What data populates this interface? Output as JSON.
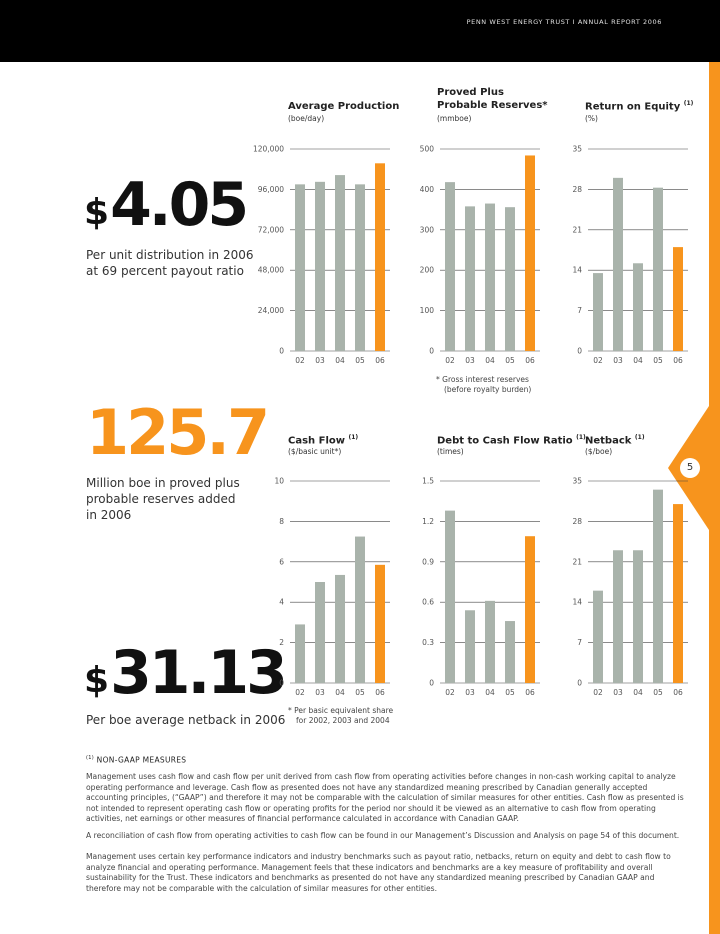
{
  "header": {
    "running_title": "PENN WEST ENERGY TRUST I ANNUAL REPORT 2006",
    "page_number": "5"
  },
  "highlights": [
    {
      "dollar": "$",
      "value": "4.05",
      "caption": [
        "Per unit distribution in 2006",
        "at 69 percent payout ratio"
      ]
    },
    {
      "dollar": "",
      "value": "125.7",
      "caption": [
        "Million boe in proved plus",
        "probable reserves added",
        "in 2006"
      ]
    },
    {
      "dollar": "$",
      "value": "31.13",
      "caption": [
        "Per boe average netback in 2006"
      ]
    }
  ],
  "colors": {
    "bar": "#a9b3ab",
    "highlight": "#f7941d",
    "gridline": "#444444",
    "orange_accent": "#f7941d"
  },
  "chart_data": [
    {
      "type": "bar",
      "title": [
        "Average Production"
      ],
      "note_marker": "",
      "unit": "(boe/day)",
      "categories": [
        "02",
        "03",
        "04",
        "05",
        "06"
      ],
      "values": [
        99000,
        100500,
        104500,
        99000,
        111500
      ],
      "ylim": [
        0,
        120000
      ],
      "yticks": [
        "0",
        "24,000",
        "48,000",
        "72,000",
        "96,000",
        "120,000"
      ],
      "highlight_index": 4,
      "footnote": []
    },
    {
      "type": "bar",
      "title": [
        "Proved Plus",
        "Probable Reserves*"
      ],
      "note_marker": "",
      "unit": "(mmboe)",
      "categories": [
        "02",
        "03",
        "04",
        "05",
        "06"
      ],
      "values": [
        418,
        358,
        365,
        356,
        484
      ],
      "ylim": [
        0,
        500
      ],
      "yticks": [
        "0",
        "100",
        "200",
        "300",
        "400",
        "500"
      ],
      "highlight_index": 4,
      "footnote": [
        "*  Gross interest reserves",
        "(before royalty burden)"
      ]
    },
    {
      "type": "bar",
      "title": [
        "Return on Equity"
      ],
      "note_marker": "(1)",
      "unit": "(%)",
      "categories": [
        "02",
        "03",
        "04",
        "05",
        "06"
      ],
      "values": [
        13.5,
        30,
        15.2,
        28.3,
        18
      ],
      "ylim": [
        0,
        35
      ],
      "yticks": [
        "0",
        "7",
        "14",
        "21",
        "28",
        "35"
      ],
      "highlight_index": 4,
      "footnote": []
    },
    {
      "type": "bar",
      "title": [
        "Cash Flow"
      ],
      "note_marker": "(1)",
      "unit": "($/basic unit*)",
      "categories": [
        "02",
        "03",
        "04",
        "05",
        "06"
      ],
      "values": [
        2.9,
        5.0,
        5.35,
        7.25,
        5.85
      ],
      "ylim": [
        0,
        10
      ],
      "yticks": [
        "0",
        "2",
        "4",
        "6",
        "8",
        "10"
      ],
      "highlight_index": 4,
      "footnote": [
        "*  Per basic equivalent share",
        "for 2002, 2003 and 2004"
      ]
    },
    {
      "type": "bar",
      "title": [
        "Debt to Cash Flow Ratio"
      ],
      "note_marker": "(1)",
      "unit": "(times)",
      "categories": [
        "02",
        "03",
        "04",
        "05",
        "06"
      ],
      "values": [
        1.28,
        0.54,
        0.61,
        0.46,
        1.09
      ],
      "ylim": [
        0,
        1.5
      ],
      "yticks": [
        "0",
        "0.3",
        "0.6",
        "0.9",
        "1.2",
        "1.5"
      ],
      "highlight_index": 4,
      "footnote": []
    },
    {
      "type": "bar",
      "title": [
        "Netback"
      ],
      "note_marker": "(1)",
      "unit": "($/boe)",
      "categories": [
        "02",
        "03",
        "04",
        "05",
        "06"
      ],
      "values": [
        16,
        23,
        23,
        33.5,
        31
      ],
      "ylim": [
        0,
        35
      ],
      "yticks": [
        "0",
        "7",
        "14",
        "21",
        "28",
        "35"
      ],
      "highlight_index": 4,
      "footnote": []
    }
  ],
  "non_gaap": {
    "marker": "(1)",
    "heading": "NON-GAAP MEASURES",
    "paragraphs": [
      "Management uses cash flow and cash flow per unit derived from cash flow from operating activities before changes in non-cash working capital to analyze operating performance and leverage. Cash flow as presented does not have any standardized meaning prescribed by Canadian generally accepted accounting principles, (“GAAP”) and therefore it may not be comparable with the calculation of similar measures for other entities. Cash flow as presented is not intended to represent operating cash flow or operating profits for the period nor should it be viewed as an alternative to cash flow from operating activities, net earnings or other measures of financial performance calculated in accordance with Canadian GAAP.",
      "A reconciliation of cash flow from operating activities to cash flow can be found in our Management’s Discussion and Analysis on page 54 of this document.",
      "Management uses certain key performance indicators and industry benchmarks such as payout ratio, netbacks, return on equity and debt to cash flow to analyze financial and operating performance. Management feels that these indicators and benchmarks are a key measure of profitability and overall sustainability for the Trust. These indicators and benchmarks as presented do not have any standardized meaning prescribed by Canadian GAAP and therefore may not be comparable with the calculation of similar measures for other entities."
    ]
  }
}
